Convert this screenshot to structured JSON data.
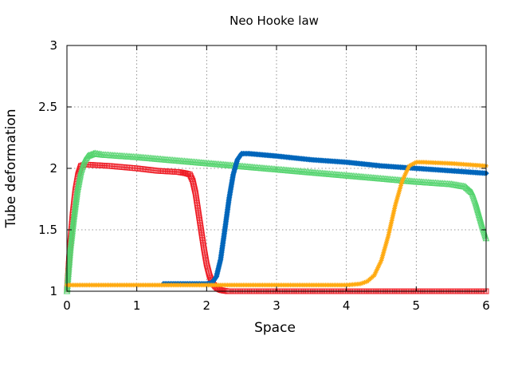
{
  "chart_data": {
    "type": "line",
    "title": "Neo Hooke law",
    "xlabel": "Space",
    "ylabel": "Tube deformation",
    "xlim": [
      0,
      6
    ],
    "ylim": [
      1,
      3
    ],
    "xticks": [
      "0",
      "1",
      "2",
      "3",
      "4",
      "5",
      "6"
    ],
    "yticks": [
      "1",
      "1.5",
      "2",
      "2.5",
      "3"
    ],
    "grid": true,
    "legend": "none",
    "series": [
      {
        "color": "#ee1c25",
        "marker": "square",
        "x": [
          0.0,
          0.04,
          0.08,
          0.12,
          0.16,
          0.2,
          0.25,
          0.3,
          0.6,
          1.0,
          1.3,
          1.6,
          1.7,
          1.76,
          1.8,
          1.84,
          1.88,
          1.92,
          1.96,
          2.0,
          2.04,
          2.08,
          2.12,
          2.16,
          2.2,
          2.24,
          2.3,
          2.4,
          3.0,
          4.0,
          5.0,
          6.0
        ],
        "y": [
          1.0,
          1.35,
          1.62,
          1.82,
          1.95,
          2.02,
          2.03,
          2.03,
          2.02,
          2.0,
          1.98,
          1.97,
          1.96,
          1.95,
          1.9,
          1.8,
          1.65,
          1.5,
          1.35,
          1.22,
          1.13,
          1.07,
          1.04,
          1.02,
          1.01,
          1.005,
          1.0,
          1.0,
          1.0,
          1.0,
          1.0,
          1.0
        ]
      },
      {
        "color": "#55d46f",
        "marker": "triangle",
        "x": [
          0.0,
          0.05,
          0.1,
          0.15,
          0.2,
          0.25,
          0.3,
          0.35,
          0.4,
          0.5,
          1.0,
          2.0,
          3.0,
          4.0,
          5.0,
          5.5,
          5.7,
          5.8,
          5.85,
          5.9,
          5.95,
          6.0
        ],
        "y": [
          1.0,
          1.35,
          1.6,
          1.82,
          1.97,
          2.06,
          2.1,
          2.11,
          2.12,
          2.11,
          2.09,
          2.04,
          1.99,
          1.94,
          1.89,
          1.87,
          1.85,
          1.8,
          1.72,
          1.62,
          1.52,
          1.43
        ]
      },
      {
        "color": "#0066bb",
        "marker": "diamond",
        "x": [
          1.38,
          1.7,
          2.0,
          2.08,
          2.14,
          2.2,
          2.26,
          2.32,
          2.38,
          2.44,
          2.5,
          2.6,
          2.8,
          3.0,
          3.5,
          4.0,
          4.5,
          5.0,
          5.5,
          6.0
        ],
        "y": [
          1.06,
          1.06,
          1.06,
          1.07,
          1.12,
          1.26,
          1.5,
          1.75,
          1.95,
          2.07,
          2.12,
          2.12,
          2.11,
          2.1,
          2.07,
          2.05,
          2.02,
          2.0,
          1.98,
          1.96
        ]
      },
      {
        "color": "#ffaa11",
        "marker": "star",
        "x": [
          0.0,
          1.0,
          2.0,
          3.0,
          4.0,
          4.2,
          4.3,
          4.4,
          4.5,
          4.6,
          4.7,
          4.8,
          4.9,
          5.0,
          5.1,
          5.5,
          6.0
        ],
        "y": [
          1.05,
          1.05,
          1.05,
          1.05,
          1.05,
          1.06,
          1.08,
          1.13,
          1.25,
          1.45,
          1.7,
          1.9,
          2.02,
          2.05,
          2.05,
          2.04,
          2.02
        ]
      }
    ]
  }
}
